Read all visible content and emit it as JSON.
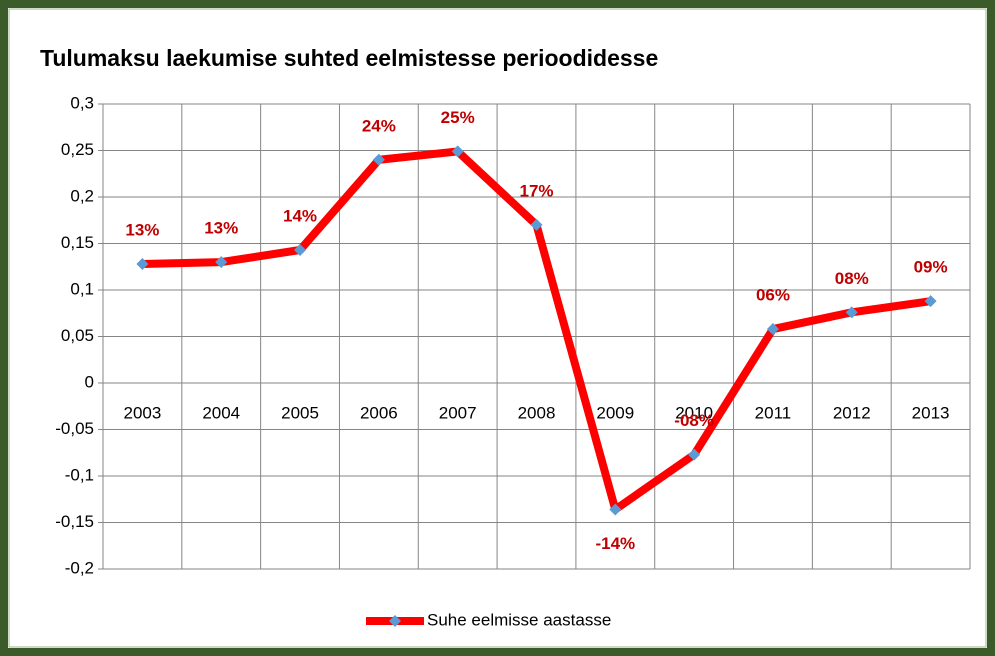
{
  "chart_data": {
    "type": "line",
    "title": "Tulumaksu laekumise suhted eelmistesse perioodidesse",
    "categories": [
      "2003",
      "2004",
      "2005",
      "2006",
      "2007",
      "2008",
      "2009",
      "2010",
      "2011",
      "2012",
      "2013"
    ],
    "series": [
      {
        "name": "Suhe eelmisse aastasse",
        "color": "#ff0000",
        "marker_color": "#5b9bd5",
        "values": [
          0.128,
          0.13,
          0.143,
          0.24,
          0.249,
          0.17,
          -0.136,
          -0.077,
          0.058,
          0.076,
          0.088
        ],
        "value_labels": [
          "13%",
          "13%",
          "14%",
          "24%",
          "25%",
          "17%",
          "-14%",
          "-08%",
          "06%",
          "08%",
          "09%"
        ],
        "label_color": "#c00000"
      }
    ],
    "ylim": [
      -0.2,
      0.3
    ],
    "yticks": [
      {
        "value": -0.2,
        "label": "-0,2"
      },
      {
        "value": -0.15,
        "label": "-0,15"
      },
      {
        "value": -0.1,
        "label": "-0,1"
      },
      {
        "value": -0.05,
        "label": "-0,05"
      },
      0,
      {
        "value": 0.05,
        "label": "0,05"
      },
      {
        "value": 0.1,
        "label": "0,1"
      },
      {
        "value": 0.15,
        "label": "0,15"
      },
      {
        "value": 0.2,
        "label": "0,2"
      },
      {
        "value": 0.25,
        "label": "0,25"
      },
      {
        "value": 0.3,
        "label": "0,3"
      }
    ],
    "grid": true,
    "legend": "bottom"
  }
}
